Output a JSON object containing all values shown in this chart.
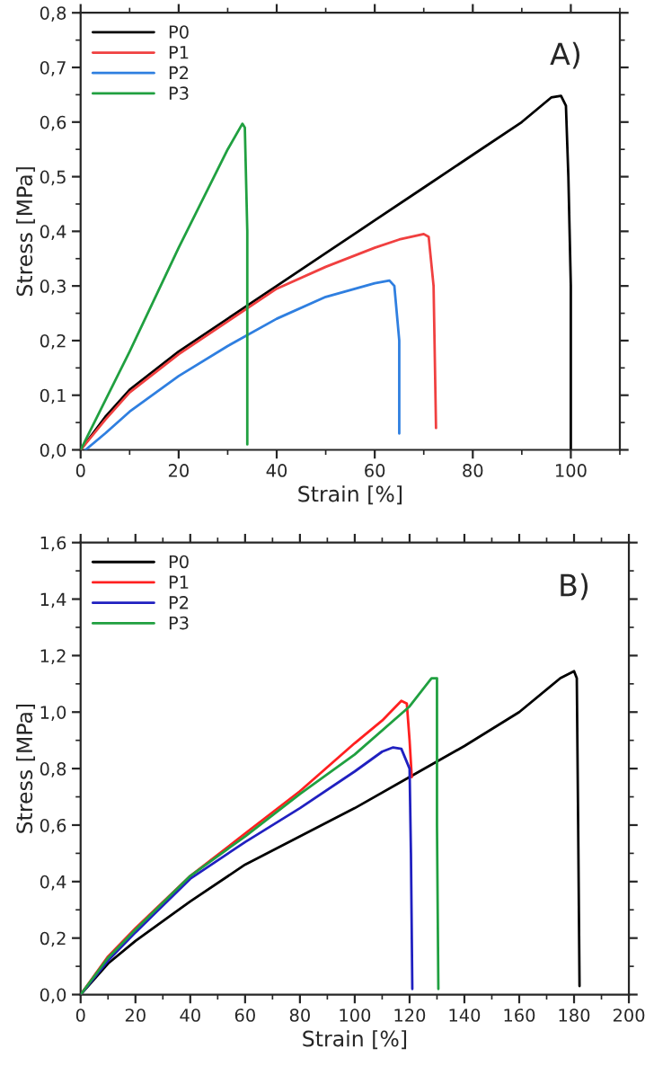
{
  "chart_data": [
    {
      "type": "line",
      "xlabel": "Strain [%]",
      "ylabel": "Stress [MPa]",
      "annotations": [
        "A)"
      ],
      "legend": "top left",
      "grid": false,
      "marker": "none",
      "line_style": "solid",
      "xlim": [
        0,
        110
      ],
      "xticks": [
        0,
        20,
        40,
        60,
        80,
        100
      ],
      "ylim": [
        0,
        0.8
      ],
      "yticks": [
        {
          "value": 0,
          "label": "0,0"
        },
        {
          "value": 0.1,
          "label": "0,1"
        },
        {
          "value": 0.2,
          "label": "0,2"
        },
        {
          "value": 0.3,
          "label": "0,3"
        },
        {
          "value": 0.4,
          "label": "0,4"
        },
        {
          "value": 0.5,
          "label": "0,5"
        },
        {
          "value": 0.6,
          "label": "0,6"
        },
        {
          "value": 0.7,
          "label": "0,7"
        },
        {
          "value": 0.8,
          "label": "0,8"
        }
      ],
      "series": [
        {
          "name": "P0",
          "color": "#000000",
          "x": [
            0,
            5,
            10,
            20,
            30,
            40,
            50,
            60,
            70,
            80,
            90,
            96,
            98,
            99,
            99.5,
            100,
            100
          ],
          "values": [
            0,
            0.06,
            0.11,
            0.18,
            0.24,
            0.3,
            0.36,
            0.42,
            0.48,
            0.54,
            0.6,
            0.645,
            0.648,
            0.63,
            0.5,
            0.3,
            0.0
          ]
        },
        {
          "name": "P1",
          "color": "#f04040",
          "x": [
            0,
            5,
            10,
            20,
            30,
            40,
            50,
            60,
            65,
            70,
            71,
            72,
            72.5
          ],
          "values": [
            0,
            0.055,
            0.105,
            0.175,
            0.235,
            0.295,
            0.335,
            0.37,
            0.385,
            0.395,
            0.39,
            0.3,
            0.04
          ]
        },
        {
          "name": "P2",
          "color": "#2f7fe0",
          "x": [
            1,
            5,
            10,
            20,
            30,
            40,
            50,
            60,
            63,
            64,
            65,
            65
          ],
          "values": [
            0,
            0.03,
            0.07,
            0.135,
            0.19,
            0.24,
            0.28,
            0.305,
            0.31,
            0.3,
            0.2,
            0.03
          ]
        },
        {
          "name": "P3",
          "color": "#20a040",
          "x": [
            0,
            10,
            20,
            30,
            33,
            33.5,
            34,
            34
          ],
          "values": [
            0,
            0.18,
            0.37,
            0.55,
            0.597,
            0.59,
            0.4,
            0.01
          ]
        }
      ]
    },
    {
      "type": "line",
      "xlabel": "Strain [%]",
      "ylabel": "Stress [MPa]",
      "annotations": [
        "B)"
      ],
      "legend": "top left",
      "grid": false,
      "marker": "none",
      "line_style": "solid",
      "xlim": [
        0,
        200
      ],
      "xticks": [
        0,
        20,
        40,
        60,
        80,
        100,
        120,
        140,
        160,
        180,
        200
      ],
      "ylim": [
        0,
        1.6
      ],
      "yticks": [
        {
          "value": 0,
          "label": "0,0"
        },
        {
          "value": 0.2,
          "label": "0,2"
        },
        {
          "value": 0.4,
          "label": "0,4"
        },
        {
          "value": 0.6,
          "label": "0,6"
        },
        {
          "value": 0.8,
          "label": "0,8"
        },
        {
          "value": 1.0,
          "label": "1,0"
        },
        {
          "value": 1.2,
          "label": "1,2"
        },
        {
          "value": 1.4,
          "label": "1,4"
        },
        {
          "value": 1.6,
          "label": "1,6"
        }
      ],
      "series": [
        {
          "name": "P0",
          "color": "#000000",
          "x": [
            0,
            10,
            20,
            40,
            60,
            80,
            100,
            120,
            140,
            160,
            175,
            180,
            181,
            181.5,
            182
          ],
          "values": [
            0,
            0.11,
            0.19,
            0.33,
            0.46,
            0.56,
            0.66,
            0.77,
            0.88,
            1.0,
            1.12,
            1.145,
            1.12,
            0.6,
            0.03
          ]
        },
        {
          "name": "P1",
          "color": "#ff2020",
          "x": [
            0,
            10,
            20,
            40,
            60,
            80,
            100,
            110,
            117,
            119,
            120,
            120.8
          ],
          "values": [
            0,
            0.135,
            0.235,
            0.42,
            0.57,
            0.72,
            0.89,
            0.97,
            1.04,
            1.03,
            0.9,
            0.77
          ]
        },
        {
          "name": "P2",
          "color": "#2020c0",
          "x": [
            0,
            10,
            20,
            40,
            60,
            80,
            100,
            110,
            114,
            117,
            120,
            120.5,
            121
          ],
          "values": [
            0,
            0.12,
            0.22,
            0.41,
            0.54,
            0.66,
            0.79,
            0.86,
            0.875,
            0.87,
            0.8,
            0.5,
            0.02
          ]
        },
        {
          "name": "P3",
          "color": "#20a040",
          "x": [
            0,
            10,
            20,
            40,
            60,
            80,
            100,
            120,
            128,
            130,
            130,
            130.5
          ],
          "values": [
            0,
            0.13,
            0.23,
            0.42,
            0.56,
            0.71,
            0.85,
            1.02,
            1.12,
            1.12,
            0.6,
            0.02
          ]
        }
      ]
    }
  ]
}
